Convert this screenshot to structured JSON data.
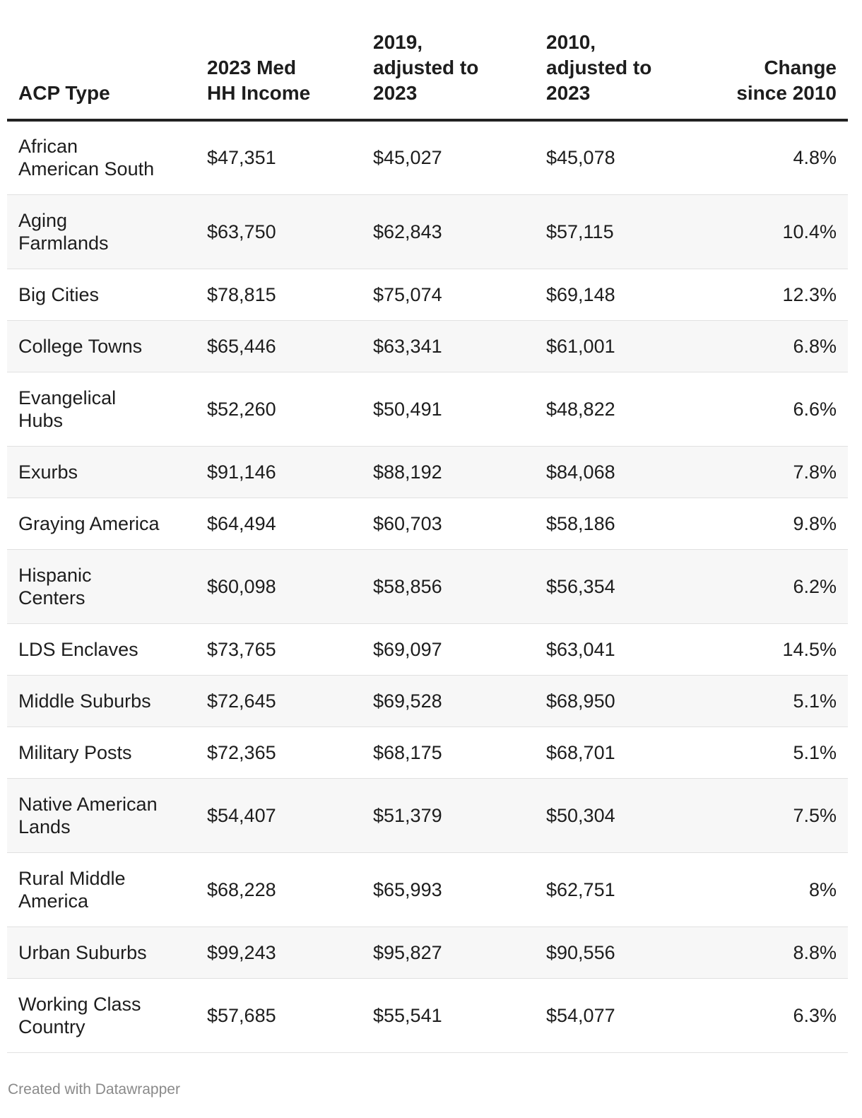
{
  "chart_data": {
    "type": "table",
    "columns": [
      "ACP Type",
      "2023 Med\nHH Income",
      "2019,\nadjusted to\n2023",
      "2010,\nadjusted to\n2023",
      "Change\nsince 2010"
    ],
    "rows": [
      {
        "type": "African\nAmerican South",
        "income_2023": "$47,351",
        "income_2019_adj": "$45,027",
        "income_2010_adj": "$45,078",
        "change": "4.8%"
      },
      {
        "type": "Aging\nFarmlands",
        "income_2023": "$63,750",
        "income_2019_adj": "$62,843",
        "income_2010_adj": "$57,115",
        "change": "10.4%"
      },
      {
        "type": "Big Cities",
        "income_2023": "$78,815",
        "income_2019_adj": "$75,074",
        "income_2010_adj": "$69,148",
        "change": "12.3%"
      },
      {
        "type": "College Towns",
        "income_2023": "$65,446",
        "income_2019_adj": "$63,341",
        "income_2010_adj": "$61,001",
        "change": "6.8%"
      },
      {
        "type": "Evangelical\nHubs",
        "income_2023": "$52,260",
        "income_2019_adj": "$50,491",
        "income_2010_adj": "$48,822",
        "change": "6.6%"
      },
      {
        "type": "Exurbs",
        "income_2023": "$91,146",
        "income_2019_adj": "$88,192",
        "income_2010_adj": "$84,068",
        "change": "7.8%"
      },
      {
        "type": "Graying America",
        "income_2023": "$64,494",
        "income_2019_adj": "$60,703",
        "income_2010_adj": "$58,186",
        "change": "9.8%"
      },
      {
        "type": "Hispanic\nCenters",
        "income_2023": "$60,098",
        "income_2019_adj": "$58,856",
        "income_2010_adj": "$56,354",
        "change": "6.2%"
      },
      {
        "type": "LDS Enclaves",
        "income_2023": "$73,765",
        "income_2019_adj": "$69,097",
        "income_2010_adj": "$63,041",
        "change": "14.5%"
      },
      {
        "type": "Middle Suburbs",
        "income_2023": "$72,645",
        "income_2019_adj": "$69,528",
        "income_2010_adj": "$68,950",
        "change": "5.1%"
      },
      {
        "type": "Military Posts",
        "income_2023": "$72,365",
        "income_2019_adj": "$68,175",
        "income_2010_adj": "$68,701",
        "change": "5.1%"
      },
      {
        "type": "Native American\nLands",
        "income_2023": "$54,407",
        "income_2019_adj": "$51,379",
        "income_2010_adj": "$50,304",
        "change": "7.5%"
      },
      {
        "type": "Rural Middle\nAmerica",
        "income_2023": "$68,228",
        "income_2019_adj": "$65,993",
        "income_2010_adj": "$62,751",
        "change": "8%"
      },
      {
        "type": "Urban Suburbs",
        "income_2023": "$99,243",
        "income_2019_adj": "$95,827",
        "income_2010_adj": "$90,556",
        "change": "8.8%"
      },
      {
        "type": "Working Class\nCountry",
        "income_2023": "$57,685",
        "income_2019_adj": "$55,541",
        "income_2010_adj": "$54,077",
        "change": "6.3%"
      }
    ],
    "striped_rows": true
  },
  "footer": {
    "credit": "Created with Datawrapper"
  },
  "colors": {
    "text": "#1d1d1d",
    "stripe": "#f7f7f7",
    "header_rule": "#222222",
    "row_rule": "#e1e1e1",
    "credit": "#8a8a8a"
  }
}
